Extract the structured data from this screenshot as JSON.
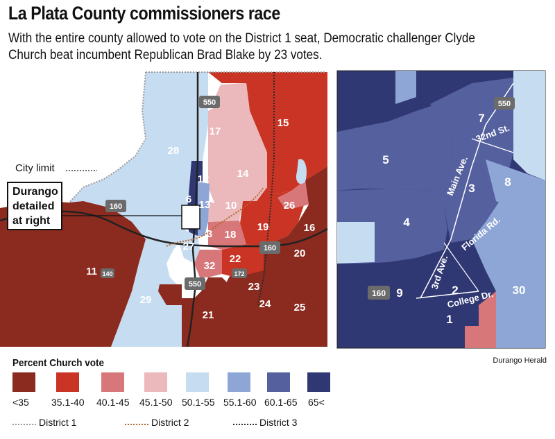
{
  "header": {
    "title": "La Plata County commissioners race",
    "subtitle": "With the entire county allowed to vote on the District 1 seat, Democratic challenger Clyde Church beat incumbent Republican Brad Blake by 23 votes."
  },
  "county_map": {
    "city_limit_label": "City limit",
    "callout_label": "Durango detailed at right",
    "precincts": [
      "28",
      "17",
      "15",
      "14",
      "12",
      "6",
      "13",
      "10",
      "26",
      "16",
      "19",
      "3",
      "18",
      "31",
      "27",
      "22",
      "20",
      "32",
      "11",
      "23",
      "24",
      "25",
      "29",
      "21"
    ],
    "highways": [
      "550",
      "160",
      "160",
      "140",
      "172",
      "550"
    ]
  },
  "city_map": {
    "precincts": [
      "5",
      "7",
      "8",
      "3",
      "4",
      "9",
      "2",
      "1",
      "30"
    ],
    "highways": [
      "550",
      "160"
    ],
    "streets": [
      "32nd St.",
      "Main Ave.",
      "Florida Rd.",
      "3rd Ave.",
      "College Dr."
    ]
  },
  "legend": {
    "title": "Percent Church vote",
    "bins": [
      {
        "label": "<35",
        "color": "#8b2a1e"
      },
      {
        "label": "35.1-40",
        "color": "#c93424"
      },
      {
        "label": "40.1-45",
        "color": "#d8777a"
      },
      {
        "label": "45.1-50",
        "color": "#ebb9bc"
      },
      {
        "label": "50.1-55",
        "color": "#c6dcf1"
      },
      {
        "label": "55.1-60",
        "color": "#8ea6d6"
      },
      {
        "label": "60.1-65",
        "color": "#55609f"
      },
      {
        "label": "65<",
        "color": "#303874"
      }
    ],
    "districts": [
      {
        "label": "District 1",
        "color": "#9a9a9a"
      },
      {
        "label": "District 2",
        "color": "#b5652a"
      },
      {
        "label": "District 3",
        "color": "#2b2b2b"
      }
    ]
  },
  "credit": "Durango Herald"
}
